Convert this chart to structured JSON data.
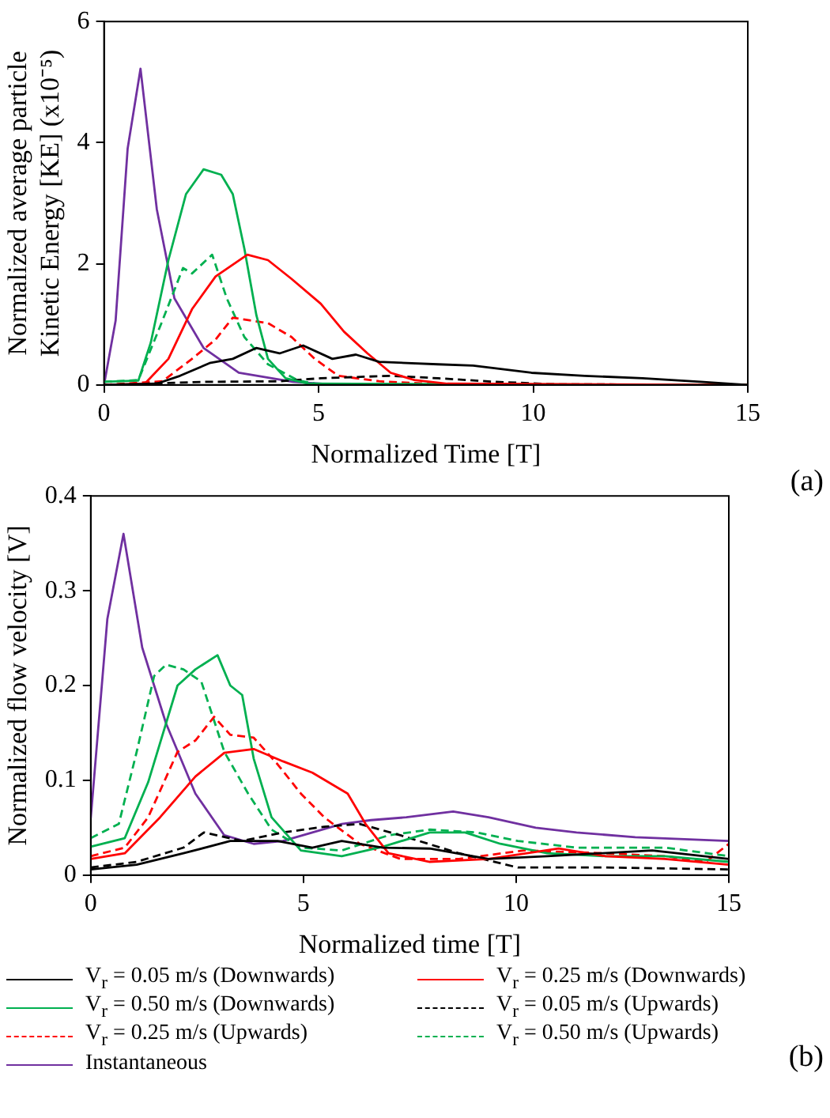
{
  "chart_data": [
    {
      "type": "line",
      "xlabel": "Normalized Time [T]",
      "ylabel": "Normalized average particle Kinetic Energy [KE] (x10⁻⁵)",
      "xlim": [
        0,
        15
      ],
      "xticks": [
        0,
        5,
        10,
        15
      ],
      "ylim": [
        0,
        6
      ],
      "yticks": [
        0,
        2,
        4,
        6
      ],
      "grid": false,
      "legend": false,
      "marker": "none",
      "annotations": [
        "(a)"
      ],
      "series": [
        {
          "color": "#000000",
          "x": [
            0,
            1.23,
            1.77,
            2.46,
            3.0,
            3.55,
            4.09,
            4.64,
            5.32,
            5.87,
            6.41,
            7.78,
            8.6,
            9.96,
            11.2,
            12.55,
            13.9,
            15
          ],
          "values": [
            0,
            0.02,
            0.15,
            0.36,
            0.43,
            0.61,
            0.52,
            0.65,
            0.43,
            0.5,
            0.38,
            0.34,
            0.32,
            0.2,
            0.15,
            0.11,
            0.05,
            0
          ]
        },
        {
          "color": "#ff0000",
          "x": [
            0,
            0.95,
            1.5,
            2.05,
            2.6,
            3.34,
            3.82,
            4.37,
            5.05,
            5.59,
            6.14,
            6.68,
            7.23,
            8.0,
            15
          ],
          "values": [
            0,
            0.02,
            0.43,
            1.25,
            1.79,
            2.15,
            2.06,
            1.75,
            1.34,
            0.88,
            0.52,
            0.2,
            0.08,
            0.02,
            0
          ]
        },
        {
          "color": "#00b050",
          "x": [
            0,
            0.8,
            1.09,
            1.5,
            1.91,
            2.32,
            2.73,
            3.0,
            3.27,
            3.55,
            3.82,
            4.23,
            4.77,
            15
          ],
          "values": [
            0.05,
            0.07,
            0.7,
            2.06,
            3.15,
            3.56,
            3.47,
            3.15,
            2.25,
            1.15,
            0.43,
            0.11,
            0.02,
            0
          ]
        },
        {
          "color": "#000000",
          "line_style": "dashed",
          "x": [
            0,
            2.32,
            4.09,
            5.05,
            6.68,
            7.78,
            9.14,
            10.5,
            15
          ],
          "values": [
            0,
            0.05,
            0.06,
            0.11,
            0.15,
            0.11,
            0.05,
            0.01,
            0
          ]
        },
        {
          "color": "#ff0000",
          "line_style": "dashed",
          "x": [
            0,
            1.36,
            2.05,
            2.6,
            3.0,
            3.82,
            4.37,
            4.91,
            5.46,
            6.41,
            7.78,
            15
          ],
          "values": [
            0,
            0.06,
            0.43,
            0.75,
            1.11,
            1.02,
            0.79,
            0.43,
            0.15,
            0.06,
            0.01,
            0
          ]
        },
        {
          "color": "#00b050",
          "line_style": "dashed",
          "x": [
            0,
            0.8,
            1.36,
            1.84,
            2.05,
            2.52,
            2.86,
            3.27,
            3.82,
            4.5,
            5.05,
            15
          ],
          "values": [
            0.05,
            0.08,
            1.06,
            1.93,
            1.84,
            2.15,
            1.43,
            0.79,
            0.34,
            0.08,
            0,
            0
          ]
        },
        {
          "color": "#7030a0",
          "x": [
            0,
            0.27,
            0.55,
            0.85,
            1.23,
            1.64,
            2.32,
            3.14,
            4.4,
            5.5,
            15
          ],
          "values": [
            0,
            1.06,
            3.9,
            5.22,
            2.9,
            1.43,
            0.61,
            0.2,
            0.05,
            0,
            0
          ]
        }
      ]
    },
    {
      "type": "line",
      "xlabel": "Normalized time [T]",
      "ylabel": "Normalized flow velocity [V]",
      "xlim": [
        0,
        15
      ],
      "xticks": [
        0,
        5,
        10,
        15
      ],
      "ylim": [
        0,
        0.4
      ],
      "yticks": [
        0,
        0.1,
        0.2,
        0.3,
        0.4
      ],
      "grid": false,
      "legend": "bottom",
      "marker": "none",
      "annotations": [
        "(b)"
      ],
      "series": [
        {
          "name": "V$_{r}$ = 0.05 m/s (Downwards)",
          "color": "#000000",
          "x": [
            0,
            1.08,
            2.18,
            3.28,
            4.39,
            5.21,
            5.9,
            6.87,
            7.97,
            9.35,
            10.73,
            13.2,
            15
          ],
          "values": [
            0.006,
            0.011,
            0.023,
            0.036,
            0.036,
            0.029,
            0.036,
            0.029,
            0.028,
            0.017,
            0.02,
            0.026,
            0.017
          ]
        },
        {
          "name": "V$_{r}$ = 0.25 m/s (Downwards)",
          "color": "#ff0000",
          "x": [
            0,
            0.8,
            1.63,
            2.46,
            3.14,
            3.83,
            4.52,
            5.21,
            6.04,
            6.46,
            7.0,
            7.97,
            9.35,
            11.0,
            12.1,
            13.5,
            15
          ],
          "values": [
            0.017,
            0.023,
            0.061,
            0.104,
            0.129,
            0.133,
            0.12,
            0.108,
            0.086,
            0.054,
            0.023,
            0.014,
            0.017,
            0.028,
            0.02,
            0.017,
            0.011
          ]
        },
        {
          "name": "V$_{r}$ = 0.50 m/s (Downwards)",
          "color": "#00b050",
          "x": [
            0,
            0.8,
            1.35,
            2.04,
            2.46,
            2.98,
            3.28,
            3.56,
            3.83,
            4.25,
            4.94,
            5.9,
            6.87,
            7.97,
            8.8,
            9.63,
            10.73,
            12.1,
            13.5,
            15
          ],
          "values": [
            0.03,
            0.039,
            0.098,
            0.2,
            0.217,
            0.232,
            0.2,
            0.19,
            0.123,
            0.061,
            0.026,
            0.02,
            0.03,
            0.045,
            0.045,
            0.033,
            0.023,
            0.02,
            0.02,
            0.014
          ]
        },
        {
          "name": "V$_{r}$ = 0.05 m/s (Upwards)",
          "color": "#000000",
          "line_style": "dashed",
          "x": [
            0,
            1.08,
            2.18,
            2.66,
            3.56,
            4.52,
            5.49,
            6.32,
            7.28,
            8.66,
            10.04,
            12.1,
            15
          ],
          "values": [
            0.008,
            0.014,
            0.029,
            0.045,
            0.036,
            0.045,
            0.051,
            0.054,
            0.042,
            0.023,
            0.008,
            0.008,
            0.006
          ]
        },
        {
          "name": "V$_{r}$ = 0.25 m/s (Upwards)",
          "color": "#ff0000",
          "line_style": "dashed",
          "x": [
            0,
            0.8,
            1.35,
            2.04,
            2.46,
            2.9,
            3.28,
            3.83,
            4.39,
            4.94,
            5.49,
            6.32,
            7.28,
            8.66,
            10.18,
            12.1,
            13.5,
            14.46,
            15
          ],
          "values": [
            0.02,
            0.029,
            0.061,
            0.13,
            0.142,
            0.167,
            0.148,
            0.145,
            0.117,
            0.086,
            0.061,
            0.033,
            0.017,
            0.017,
            0.026,
            0.023,
            0.02,
            0.014,
            0.033
          ]
        },
        {
          "name": "V$_{r}$ = 0.50 m/s (Upwards)",
          "color": "#00b050",
          "line_style": "dashed",
          "x": [
            0,
            0.66,
            1.08,
            1.49,
            1.77,
            2.18,
            2.6,
            3.14,
            3.7,
            4.25,
            4.94,
            5.9,
            7.0,
            7.97,
            9.08,
            10.04,
            11.42,
            13.5,
            15
          ],
          "values": [
            0.039,
            0.054,
            0.13,
            0.21,
            0.222,
            0.217,
            0.204,
            0.13,
            0.086,
            0.048,
            0.029,
            0.026,
            0.042,
            0.048,
            0.045,
            0.036,
            0.029,
            0.029,
            0.02
          ]
        },
        {
          "name": "Instantaneous",
          "color": "#7030a0",
          "x": [
            0,
            0.39,
            0.77,
            1.21,
            1.77,
            2.46,
            3.14,
            3.83,
            4.52,
            5.21,
            5.9,
            6.59,
            7.42,
            8.52,
            9.35,
            10.46,
            11.42,
            12.8,
            15
          ],
          "values": [
            0.06,
            0.27,
            0.36,
            0.24,
            0.16,
            0.086,
            0.042,
            0.033,
            0.036,
            0.045,
            0.054,
            0.058,
            0.061,
            0.067,
            0.061,
            0.05,
            0.045,
            0.04,
            0.036
          ]
        }
      ]
    }
  ]
}
